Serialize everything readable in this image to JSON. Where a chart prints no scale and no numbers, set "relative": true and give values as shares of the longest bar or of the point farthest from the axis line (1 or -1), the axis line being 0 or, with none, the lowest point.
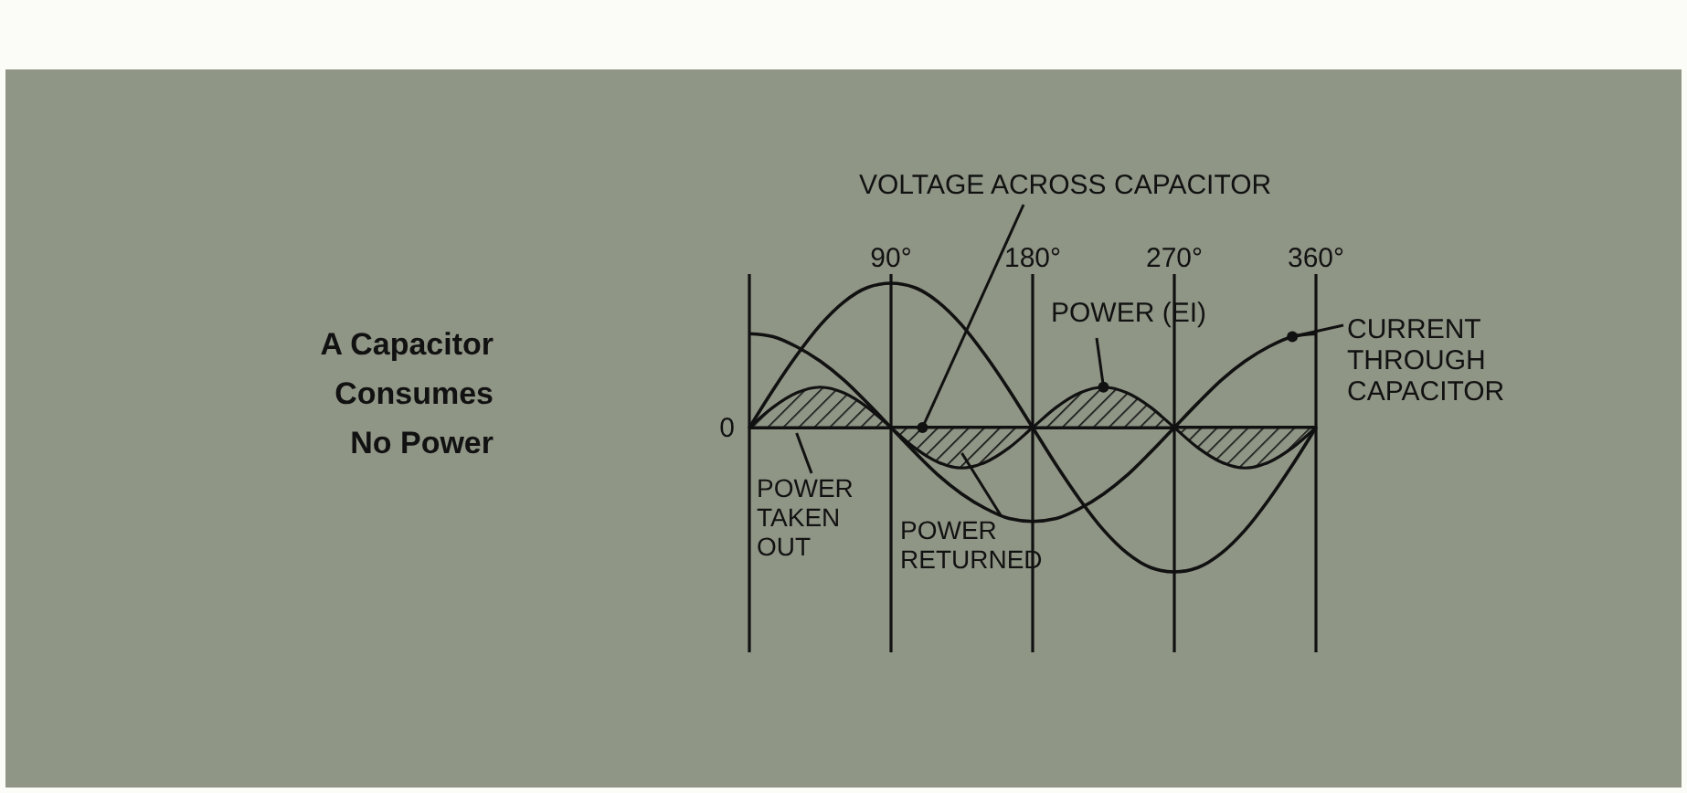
{
  "chart_data": {
    "type": "line",
    "title": "A Capacitor Consumes No Power",
    "relative": true,
    "x": [
      0,
      15,
      30,
      45,
      60,
      75,
      90,
      105,
      120,
      135,
      150,
      165,
      180,
      195,
      210,
      225,
      240,
      255,
      270,
      285,
      300,
      315,
      330,
      345,
      360
    ],
    "xlim": [
      0,
      360
    ],
    "xticks": [
      {
        "value": 0,
        "label": null
      },
      {
        "value": 90,
        "label": "90°"
      },
      {
        "value": 180,
        "label": "180°"
      },
      {
        "value": 270,
        "label": "270°"
      },
      {
        "value": 360,
        "label": "360°"
      }
    ],
    "grid": "x",
    "series": [
      {
        "name": "VOLTAGE ACROSS CAPACITOR",
        "color": "#111111",
        "values": [
          0,
          0.26,
          0.5,
          0.71,
          0.87,
          0.97,
          1,
          0.97,
          0.87,
          0.71,
          0.5,
          0.26,
          0,
          -0.26,
          -0.5,
          -0.71,
          -0.87,
          -0.97,
          -1,
          -0.97,
          -0.87,
          -0.71,
          -0.5,
          -0.26,
          0
        ]
      },
      {
        "name": "CURRENT THROUGH CAPACITOR",
        "color": "#111111",
        "values": [
          0.65,
          0.63,
          0.56,
          0.46,
          0.33,
          0.17,
          0,
          -0.17,
          -0.33,
          -0.46,
          -0.56,
          -0.63,
          -0.65,
          -0.63,
          -0.56,
          -0.46,
          -0.33,
          -0.17,
          0,
          0.17,
          0.33,
          0.46,
          0.56,
          0.63,
          0.65
        ]
      },
      {
        "name": "POWER (EI)",
        "type": "area",
        "color": "#111111",
        "values": [
          0,
          0.14,
          0.24,
          0.28,
          0.24,
          0.14,
          0,
          -0.14,
          -0.24,
          -0.28,
          -0.24,
          -0.14,
          0,
          0.14,
          0.24,
          0.28,
          0.24,
          0.14,
          0,
          -0.14,
          -0.24,
          -0.28,
          -0.24,
          -0.14,
          0
        ]
      }
    ],
    "annotations": [
      {
        "text": "0",
        "x": 0,
        "y": 0
      },
      "POWER\nTAKEN\nOUT",
      "POWER\nRETURNED"
    ]
  }
}
